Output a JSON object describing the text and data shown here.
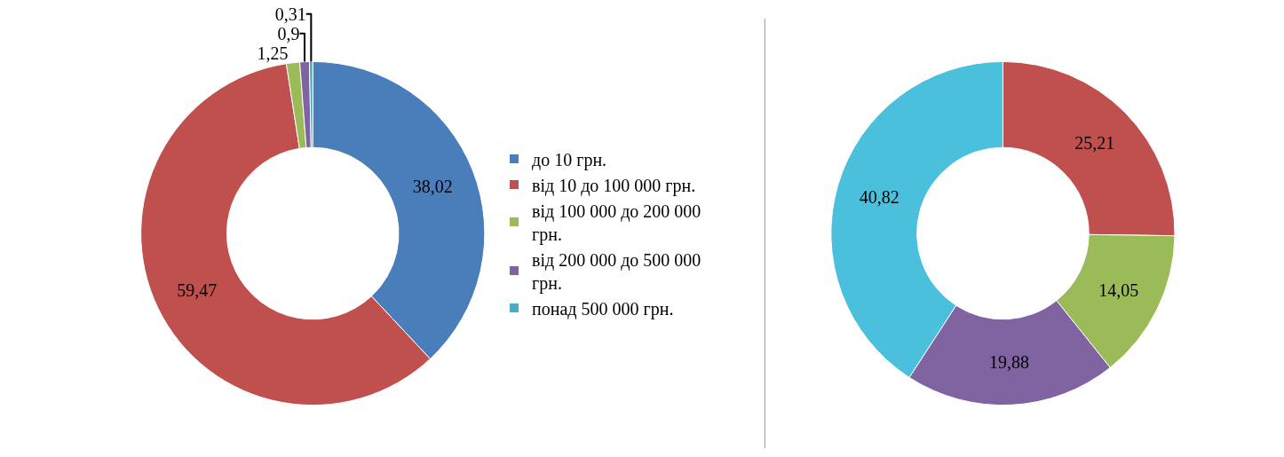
{
  "chart_data": [
    {
      "type": "donut",
      "categories": [
        "до 10 грн.",
        "від 10 до 100 000 грн.",
        "від 100 000 до 200 000 грн.",
        "від 200 000 до 500 000 грн.",
        "понад 500 000 грн."
      ],
      "values": [
        38.02,
        59.47,
        1.25,
        0.9,
        0.31
      ],
      "colors": [
        "#4a7ebb",
        "#c0504d",
        "#9bbb59",
        "#8064a2",
        "#4bacc6"
      ],
      "value_labels": [
        "38,02",
        "59,47",
        "1,25",
        "0,9",
        "0,31"
      ],
      "legend": "right"
    },
    {
      "type": "donut",
      "categories": [
        null,
        null,
        null,
        null
      ],
      "values": [
        25.21,
        14.05,
        19.88,
        40.82
      ],
      "colors": [
        "#c0504d",
        "#9bbb59",
        "#8064a2",
        "#4bc0dd"
      ],
      "value_labels": [
        "25,21",
        "14,05",
        "19,88",
        "40,82"
      ]
    }
  ]
}
